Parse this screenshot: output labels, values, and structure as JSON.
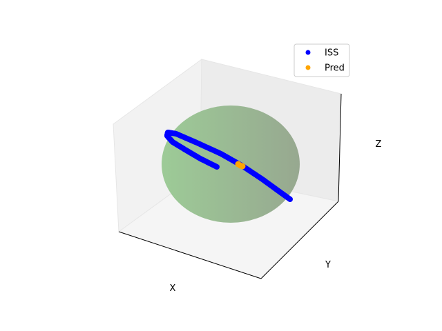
{
  "chart_data": {
    "type": "scatter",
    "projection": "3d",
    "title": "",
    "xlabel": "X",
    "ylabel": "Y",
    "zlabel": "Z",
    "ticks_visible": false,
    "grid": false,
    "pane_color": "#f2f2f2",
    "legend_position": "top-right",
    "sphere": {
      "color": "#8fbc8f",
      "alpha": 0.8
    },
    "series": [
      {
        "name": "ISS",
        "color": "#0000ff",
        "marker": "circle"
      },
      {
        "name": "Pred",
        "color": "#ffa500",
        "marker": "circle"
      }
    ]
  }
}
